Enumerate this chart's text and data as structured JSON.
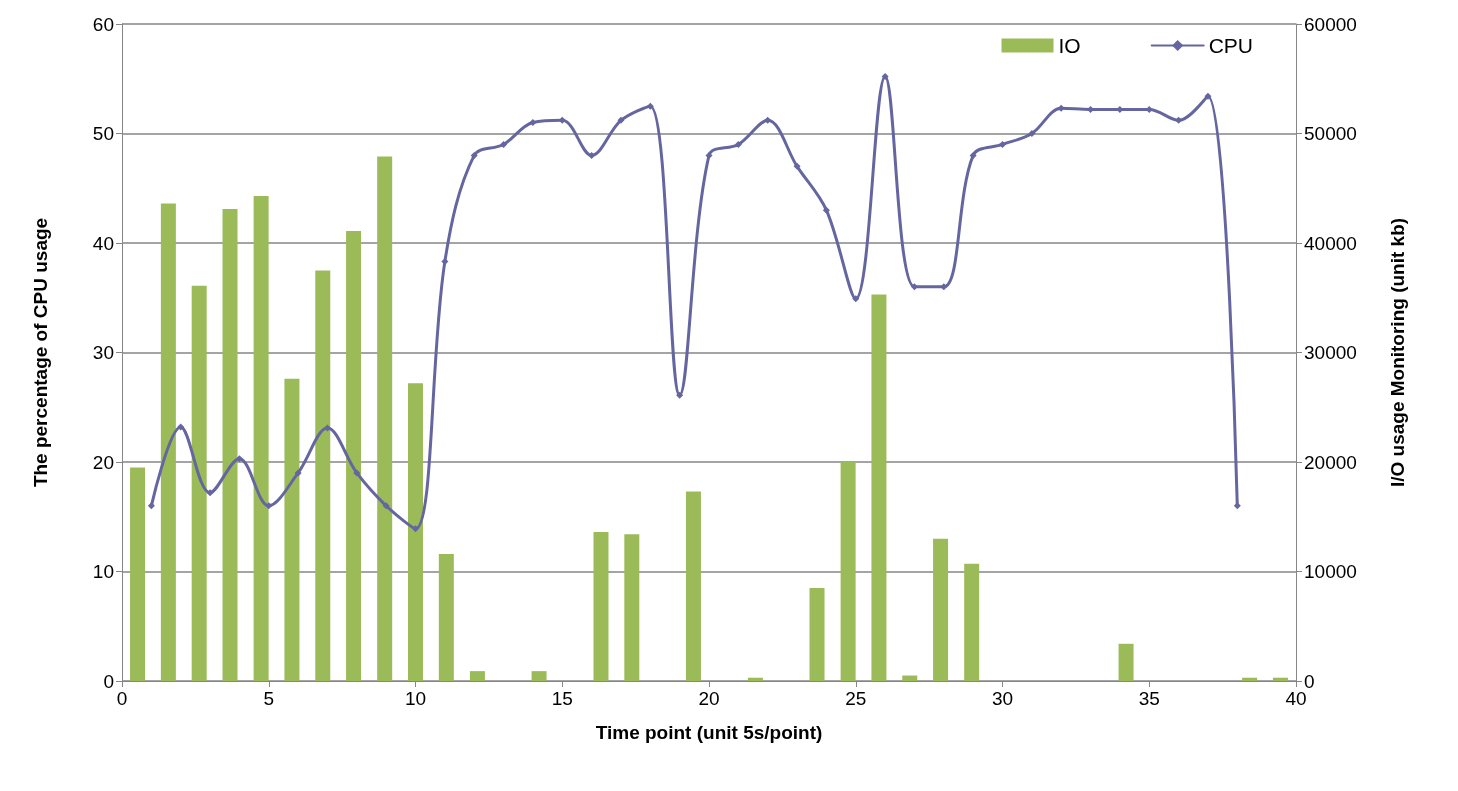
{
  "chart_data": {
    "type": "bar",
    "xlabel": "Time point (unit 5s/point)",
    "ylabel": "The percentage of CPU usage",
    "y2label": "I/O usage Monitoring (unit kb)",
    "xlim": [
      0,
      40
    ],
    "xticks": [
      0,
      5,
      10,
      15,
      20,
      25,
      30,
      35,
      40
    ],
    "ylim": [
      0,
      60
    ],
    "yticks": [
      0,
      10,
      20,
      30,
      40,
      50,
      60
    ],
    "y2lim": [
      0,
      60000
    ],
    "y2ticks": [
      0,
      10000,
      20000,
      30000,
      40000,
      50000,
      60000
    ],
    "grid": "y",
    "legend": "top right",
    "series": [
      {
        "name": "IO",
        "axis": "y2",
        "color": "#9bbb59",
        "x": [
          0.53,
          1.58,
          2.63,
          3.68,
          4.74,
          5.79,
          6.84,
          7.89,
          8.95,
          10.0,
          11.05,
          12.11,
          13.16,
          14.21,
          15.26,
          16.32,
          17.37,
          18.42,
          19.47,
          20.53,
          21.58,
          22.63,
          23.68,
          24.74,
          25.79,
          26.84,
          27.89,
          28.95,
          30.0,
          31.05,
          32.11,
          33.16,
          34.21,
          35.26,
          36.32,
          37.37,
          38.42,
          39.47
        ],
        "values": [
          19500,
          43600,
          36100,
          43100,
          44300,
          27600,
          37500,
          41100,
          47900,
          27200,
          11600,
          900,
          0,
          900,
          0,
          13600,
          13400,
          0,
          17300,
          0,
          300,
          0,
          8500,
          20000,
          35300,
          500,
          13000,
          10700,
          0,
          0,
          0,
          0,
          3400,
          0,
          0,
          0,
          300,
          300
        ]
      },
      {
        "name": "CPU",
        "type": "line",
        "color": "#6566a0",
        "marker": "diamond",
        "line_style": "solid",
        "x": [
          1,
          2,
          3,
          4,
          5,
          6,
          7,
          8,
          9,
          10,
          11,
          12,
          13,
          14,
          15,
          16,
          17,
          18,
          19,
          20,
          21,
          22,
          23,
          24,
          25,
          26,
          27,
          28,
          29,
          30,
          31,
          32,
          33,
          34,
          35,
          36,
          37,
          38
        ],
        "values": [
          16,
          23.2,
          17.2,
          20.3,
          16,
          19,
          23.1,
          19,
          16,
          13.9,
          38.3,
          48,
          49,
          51,
          51.2,
          48,
          51.2,
          52.5,
          26.1,
          48,
          49,
          51.2,
          47,
          43,
          34.9,
          55.2,
          36,
          36,
          48,
          49,
          50,
          52.3,
          52.2,
          52.2,
          52.2,
          51.2,
          53.4,
          16
        ]
      }
    ]
  }
}
